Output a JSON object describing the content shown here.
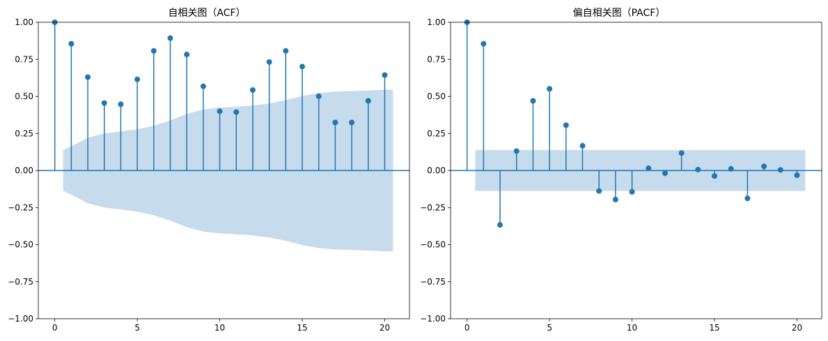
{
  "colors": {
    "stem": "#1f77b4",
    "marker": "#1f77b4",
    "confidence_band": "#c6dbec",
    "axes": "#000000"
  },
  "chart_data": [
    {
      "type": "scatter",
      "style": "stem",
      "title": "自相关图（ACF）",
      "xlabel": "",
      "ylabel": "",
      "xlim": [
        -1,
        21.5
      ],
      "ylim": [
        -1.0,
        1.0
      ],
      "xticks": [
        "0",
        "5",
        "10",
        "15",
        "20"
      ],
      "yticks": [
        "−1.00",
        "−0.75",
        "−0.50",
        "−0.25",
        "0.00",
        "0.25",
        "0.50",
        "0.75",
        "1.00"
      ],
      "grid": false,
      "x": [
        0,
        1,
        2,
        3,
        4,
        5,
        6,
        7,
        8,
        9,
        10,
        11,
        12,
        13,
        14,
        15,
        16,
        17,
        18,
        19,
        20
      ],
      "values": [
        1.0,
        0.855,
        0.63,
        0.455,
        0.447,
        0.615,
        0.807,
        0.893,
        0.783,
        0.568,
        0.4,
        0.394,
        0.543,
        0.732,
        0.807,
        0.701,
        0.501,
        0.324,
        0.324,
        0.47,
        0.644
      ],
      "confidence_band": {
        "x": [
          0.5,
          1,
          2,
          3,
          4,
          5,
          6,
          7,
          8,
          9,
          10,
          11,
          12,
          13,
          14,
          15,
          16,
          17,
          18,
          19,
          20,
          20.5
        ],
        "upper": [
          0.138,
          0.163,
          0.221,
          0.25,
          0.263,
          0.278,
          0.302,
          0.338,
          0.382,
          0.412,
          0.425,
          0.43,
          0.438,
          0.452,
          0.474,
          0.503,
          0.523,
          0.532,
          0.536,
          0.54,
          0.545,
          0.545
        ]
      }
    },
    {
      "type": "scatter",
      "style": "stem",
      "title": "偏自相关图（PACF）",
      "xlabel": "",
      "ylabel": "",
      "xlim": [
        -1,
        21.5
      ],
      "ylim": [
        -1.0,
        1.0
      ],
      "xticks": [
        "0",
        "5",
        "10",
        "15",
        "20"
      ],
      "yticks": [
        "−1.00",
        "−0.75",
        "−0.50",
        "−0.25",
        "0.00",
        "0.25",
        "0.50",
        "0.75",
        "1.00"
      ],
      "grid": false,
      "x": [
        0,
        1,
        2,
        3,
        4,
        5,
        6,
        7,
        8,
        9,
        10,
        11,
        12,
        13,
        14,
        15,
        16,
        17,
        18,
        19,
        20
      ],
      "values": [
        1.0,
        0.855,
        -0.367,
        0.131,
        0.47,
        0.551,
        0.306,
        0.167,
        -0.138,
        -0.196,
        -0.144,
        0.015,
        -0.018,
        0.118,
        0.006,
        -0.037,
        0.011,
        -0.188,
        0.028,
        0.004,
        -0.032
      ],
      "confidence_band": {
        "x": [
          0.5,
          20.5
        ],
        "upper": [
          0.138,
          0.138
        ]
      }
    }
  ]
}
